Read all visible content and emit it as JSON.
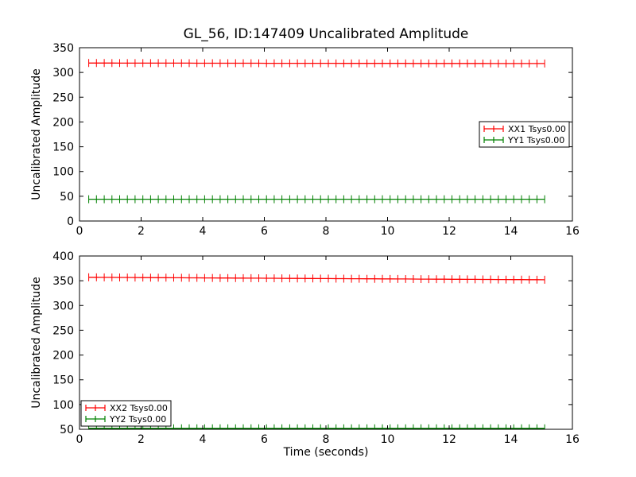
{
  "figure": {
    "background_color": "#ffffff",
    "frame_color": "#000000"
  },
  "chart_data": [
    {
      "type": "line",
      "title": "GL_56, ID:147409 Uncalibrated Amplitude",
      "xlabel": "",
      "ylabel": "Uncalibrated Amplitude",
      "xlim": [
        0,
        16
      ],
      "ylim": [
        0,
        350
      ],
      "xticks": [
        0,
        2,
        4,
        6,
        8,
        10,
        12,
        14,
        16
      ],
      "yticks": [
        0,
        50,
        100,
        150,
        200,
        250,
        300,
        350
      ],
      "grid": false,
      "legend_loc": "center right",
      "series": [
        {
          "name": "XX1 Tsys0.00",
          "color": "#ff0000",
          "marker": "errorbar",
          "x_start": 0.3,
          "x_end": 15.1,
          "n_points": 60,
          "y_start": 319,
          "y_end": 318,
          "y_err": 8
        },
        {
          "name": "YY1 Tsys0.00",
          "color": "#008000",
          "marker": "errorbar",
          "x_start": 0.3,
          "x_end": 15.1,
          "n_points": 60,
          "y_start": 44,
          "y_end": 44,
          "y_err": 8
        }
      ]
    },
    {
      "type": "line",
      "title": "",
      "xlabel": "Time (seconds)",
      "ylabel": "Uncalibrated Amplitude",
      "xlim": [
        0,
        16
      ],
      "ylim": [
        50,
        400
      ],
      "xticks": [
        0,
        2,
        4,
        6,
        8,
        10,
        12,
        14,
        16
      ],
      "yticks": [
        50,
        100,
        150,
        200,
        250,
        300,
        350,
        400
      ],
      "grid": false,
      "legend_loc": "lower left",
      "series": [
        {
          "name": "XX2 Tsys0.00",
          "color": "#ff0000",
          "marker": "errorbar",
          "x_start": 0.3,
          "x_end": 15.1,
          "n_points": 60,
          "y_start": 357,
          "y_end": 352,
          "y_err": 8
        },
        {
          "name": "YY2 Tsys0.00",
          "color": "#008000",
          "marker": "errorbar",
          "x_start": 0.3,
          "x_end": 15.1,
          "n_points": 60,
          "y_start": 52,
          "y_end": 52,
          "y_err": 8
        }
      ]
    }
  ]
}
